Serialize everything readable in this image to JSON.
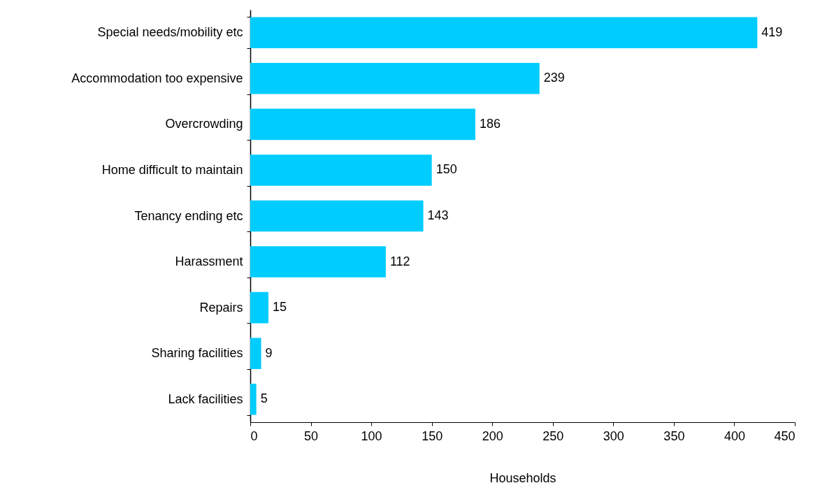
{
  "chart_data": {
    "type": "bar",
    "orientation": "horizontal",
    "xlabel": "Households",
    "categories": [
      "Special needs/mobility etc",
      "Accommodation too expensive",
      "Overcrowding",
      "Home difficult to maintain",
      "Tenancy ending etc",
      "Harassment",
      "Repairs",
      "Sharing facilities",
      "Lack facilities"
    ],
    "values": [
      419,
      239,
      186,
      150,
      143,
      112,
      15,
      9,
      5
    ],
    "color": "#00ccff",
    "xlim": [
      0,
      450
    ],
    "xticks": [
      0,
      50,
      100,
      150,
      200,
      250,
      300,
      350,
      400,
      450
    ],
    "data_labels": true
  }
}
